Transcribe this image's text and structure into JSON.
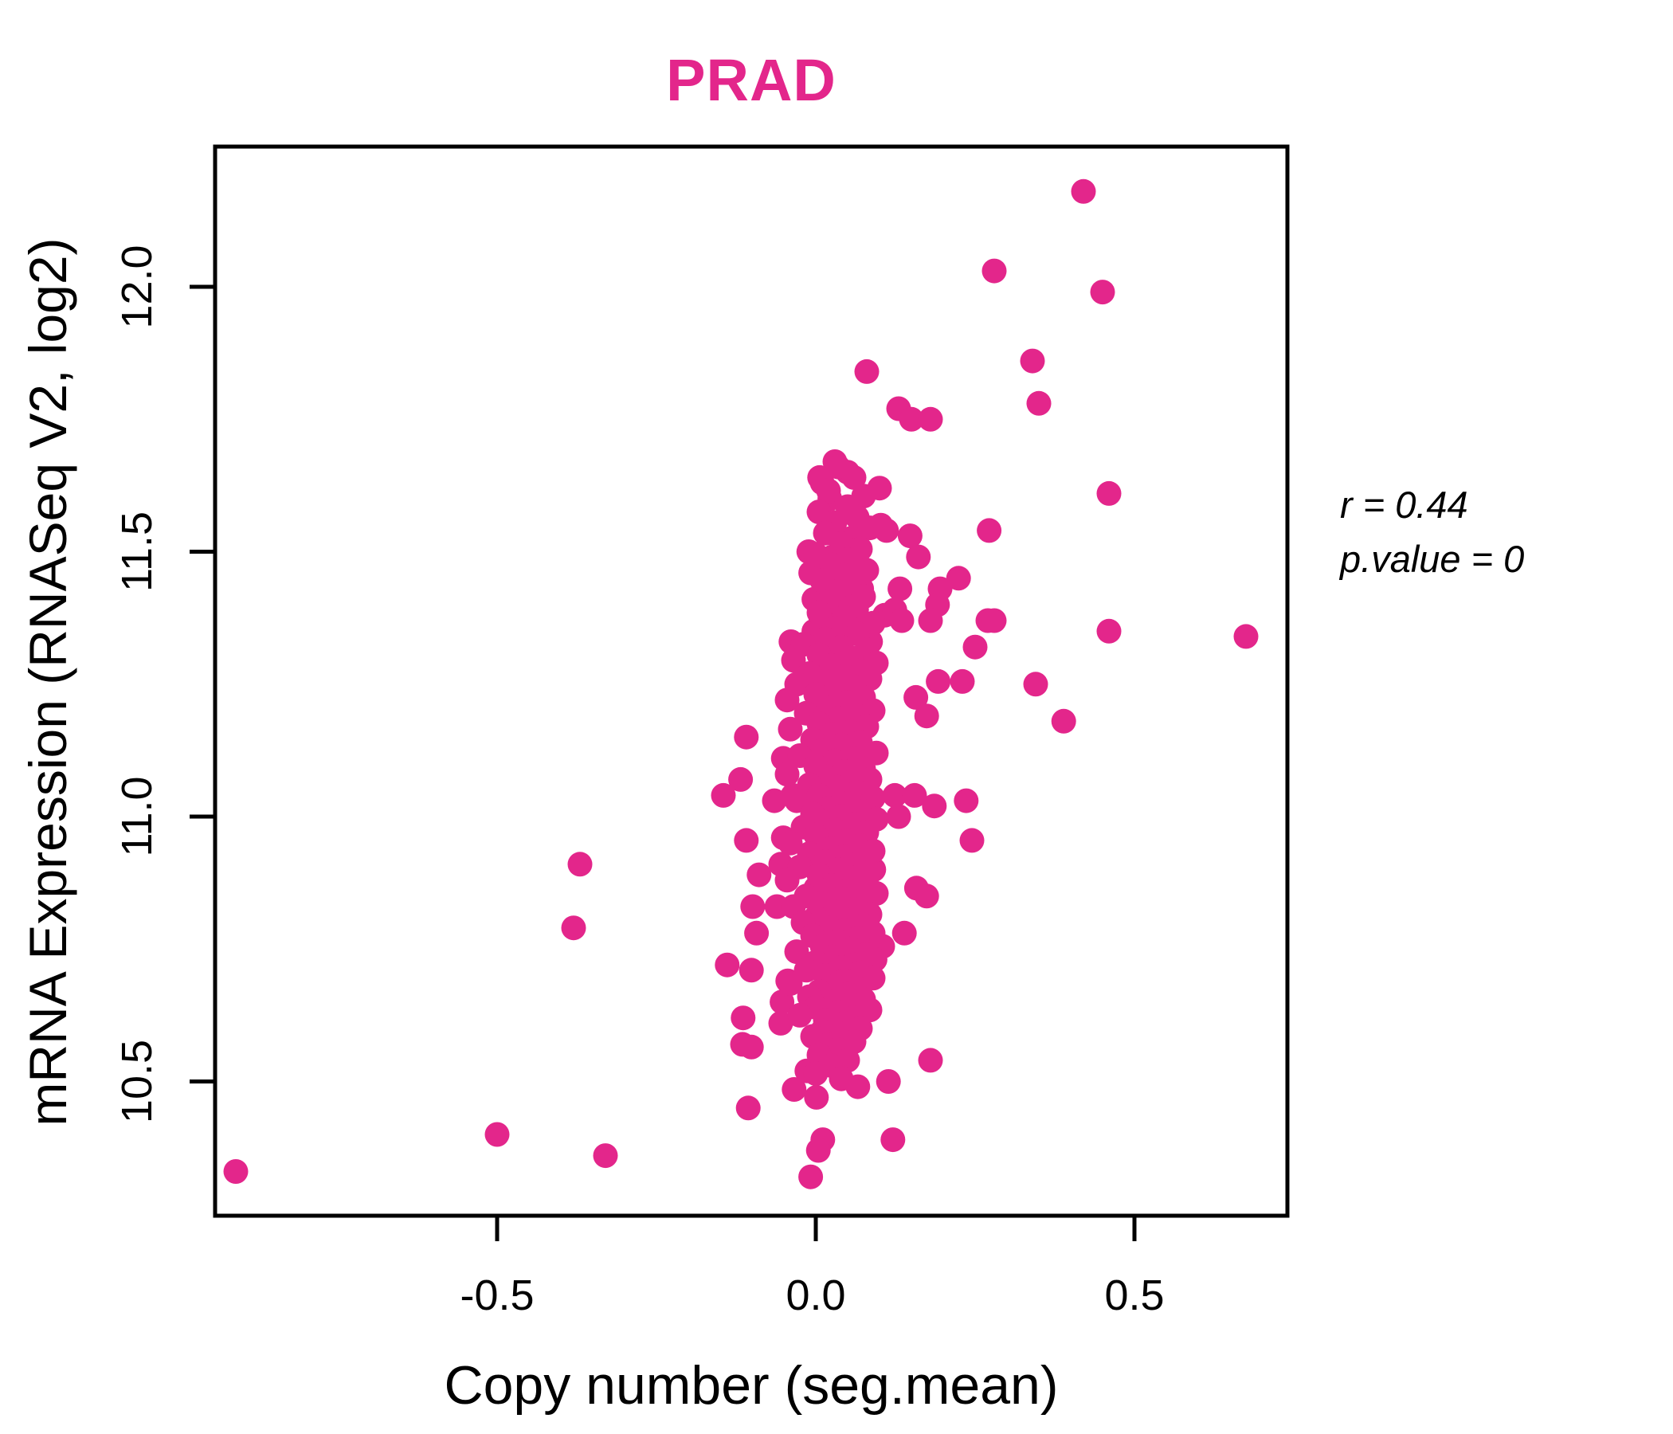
{
  "chart_data": {
    "type": "scatter",
    "title": "PRAD",
    "title_color": "#E3268B",
    "point_color": "#E3268B",
    "xlabel": "Copy number (seg.mean)",
    "ylabel": "mRNA Expression (RNASeq V2, log2)",
    "xlim": [
      -0.94,
      0.74
    ],
    "ylim": [
      10.25,
      12.27
    ],
    "grid": false,
    "legend": "none",
    "x_tick_values": [
      -0.5,
      0.0,
      0.5
    ],
    "x_tick_labels": [
      "-0.5",
      "0.0",
      "0.5"
    ],
    "y_tick_values": [
      10.5,
      11.0,
      11.5,
      12.0
    ],
    "y_tick_labels": [
      "10.5",
      "11.0",
      "11.5",
      "12.0"
    ],
    "correlation": {
      "r": 0.44,
      "p_value": 0,
      "r_label": "r = 0.44",
      "p_label": "p.value = 0"
    },
    "points": [
      [
        -0.91,
        10.33
      ],
      [
        -0.5,
        10.4
      ],
      [
        -0.33,
        10.36
      ],
      [
        -0.37,
        10.91
      ],
      [
        -0.38,
        10.79
      ],
      [
        0.42,
        12.18
      ],
      [
        0.28,
        12.03
      ],
      [
        0.45,
        11.99
      ],
      [
        0.34,
        11.86
      ],
      [
        0.35,
        11.78
      ],
      [
        0.46,
        11.61
      ],
      [
        0.675,
        11.34
      ],
      [
        0.46,
        11.35
      ],
      [
        0.08,
        11.84
      ],
      [
        0.13,
        11.77
      ],
      [
        0.15,
        11.75
      ],
      [
        0.18,
        11.75
      ],
      [
        0.03,
        11.67
      ],
      [
        0.05,
        11.65
      ],
      [
        0.01,
        11.63
      ],
      [
        0.1,
        11.62
      ],
      [
        0.006,
        11.64
      ],
      [
        0.022,
        11.6
      ],
      [
        0.102,
        11.55
      ],
      [
        0.111,
        11.54
      ],
      [
        0.148,
        11.53
      ],
      [
        0.161,
        11.49
      ],
      [
        0.272,
        11.54
      ],
      [
        -0.011,
        11.5
      ],
      [
        0.026,
        11.49
      ],
      [
        0.061,
        11.5
      ],
      [
        -0.008,
        11.46
      ],
      [
        0.024,
        11.47
      ],
      [
        0.026,
        11.45
      ],
      [
        0.045,
        11.44
      ],
      [
        0.064,
        11.44
      ],
      [
        0.072,
        11.43
      ],
      [
        0.132,
        11.43
      ],
      [
        0.224,
        11.45
      ],
      [
        0.195,
        11.43
      ],
      [
        0.191,
        11.4
      ],
      [
        0.18,
        11.37
      ],
      [
        0.108,
        11.38
      ],
      [
        0.124,
        11.39
      ],
      [
        0.135,
        11.37
      ],
      [
        -0.003,
        11.41
      ],
      [
        0.055,
        11.4
      ],
      [
        0.064,
        11.39
      ],
      [
        0.008,
        11.37
      ],
      [
        0.02,
        11.37
      ],
      [
        0.03,
        11.36
      ],
      [
        -0.003,
        11.35
      ],
      [
        0.036,
        11.35
      ],
      [
        -0.039,
        11.33
      ],
      [
        0.079,
        11.35
      ],
      [
        0.086,
        11.33
      ],
      [
        0.25,
        11.32
      ],
      [
        0.27,
        11.37
      ],
      [
        0.28,
        11.37
      ],
      [
        0.345,
        11.25
      ],
      [
        0.192,
        11.255
      ],
      [
        0.23,
        11.255
      ],
      [
        0.157,
        11.225
      ],
      [
        0.174,
        11.19
      ],
      [
        0.389,
        11.18
      ],
      [
        -0.109,
        11.15
      ],
      [
        -0.051,
        11.11
      ],
      [
        -0.118,
        11.07
      ],
      [
        -0.145,
        11.04
      ],
      [
        -0.065,
        11.03
      ],
      [
        -0.036,
        11.04
      ],
      [
        0.124,
        11.04
      ],
      [
        0.155,
        11.04
      ],
      [
        0.186,
        11.02
      ],
      [
        0.236,
        11.03
      ],
      [
        0.13,
        11.0
      ],
      [
        -0.109,
        10.955
      ],
      [
        -0.051,
        10.96
      ],
      [
        0.245,
        10.955
      ],
      [
        0.091,
        10.9
      ],
      [
        -0.055,
        10.91
      ],
      [
        -0.089,
        10.89
      ],
      [
        0.158,
        10.865
      ],
      [
        0.174,
        10.85
      ],
      [
        -0.099,
        10.83
      ],
      [
        -0.061,
        10.83
      ],
      [
        -0.093,
        10.78
      ],
      [
        0.139,
        10.78
      ],
      [
        0.105,
        10.755
      ],
      [
        0.093,
        10.73
      ],
      [
        -0.139,
        10.72
      ],
      [
        -0.101,
        10.71
      ],
      [
        -0.044,
        10.69
      ],
      [
        -0.053,
        10.65
      ],
      [
        -0.114,
        10.62
      ],
      [
        -0.055,
        10.61
      ],
      [
        -0.115,
        10.57
      ],
      [
        -0.101,
        10.565
      ],
      [
        0.18,
        10.54
      ],
      [
        -0.014,
        10.52
      ],
      [
        0.114,
        10.5
      ],
      [
        -0.034,
        10.485
      ],
      [
        0.066,
        10.49
      ],
      [
        -0.106,
        10.45
      ],
      [
        0.001,
        10.47
      ],
      [
        0.011,
        10.39
      ],
      [
        0.004,
        10.37
      ],
      [
        0.121,
        10.39
      ],
      [
        -0.008,
        10.32
      ],
      [
        0.035,
        11.66
      ],
      [
        0.06,
        11.64
      ],
      [
        0.02,
        11.615
      ],
      [
        0.075,
        11.605
      ],
      [
        0.05,
        11.585
      ],
      [
        0.005,
        11.575
      ],
      [
        0.065,
        11.565
      ],
      [
        0.03,
        11.555
      ],
      [
        0.085,
        11.545
      ],
      [
        0.015,
        11.535
      ],
      [
        0.055,
        11.525
      ],
      [
        0.04,
        11.515
      ],
      [
        0.07,
        11.505
      ],
      [
        0.0,
        11.495
      ],
      [
        0.05,
        11.485
      ],
      [
        0.025,
        11.475
      ],
      [
        0.08,
        11.465
      ],
      [
        0.045,
        11.455
      ],
      [
        0.01,
        11.445
      ],
      [
        0.06,
        11.435
      ],
      [
        0.035,
        11.425
      ],
      [
        0.075,
        11.415
      ],
      [
        0.02,
        11.405
      ],
      [
        0.055,
        11.395
      ],
      [
        0.005,
        11.385
      ],
      [
        0.045,
        11.375
      ],
      [
        0.09,
        11.365
      ],
      [
        0.03,
        11.355
      ],
      [
        0.065,
        11.345
      ],
      [
        0.015,
        11.335
      ],
      [
        -0.02,
        11.325
      ],
      [
        0.04,
        11.32
      ],
      [
        0.08,
        11.315
      ],
      [
        0.005,
        11.305
      ],
      [
        0.055,
        11.3
      ],
      [
        -0.035,
        11.295
      ],
      [
        0.095,
        11.29
      ],
      [
        0.025,
        11.285
      ],
      [
        0.065,
        11.275
      ],
      [
        -0.01,
        11.27
      ],
      [
        0.045,
        11.265
      ],
      [
        0.085,
        11.26
      ],
      [
        0.015,
        11.255
      ],
      [
        -0.03,
        11.25
      ],
      [
        0.06,
        11.245
      ],
      [
        0.03,
        11.235
      ],
      [
        0.0,
        11.23
      ],
      [
        0.075,
        11.225
      ],
      [
        -0.045,
        11.22
      ],
      [
        0.05,
        11.215
      ],
      [
        0.02,
        11.205
      ],
      [
        0.09,
        11.2
      ],
      [
        -0.015,
        11.195
      ],
      [
        0.065,
        11.19
      ],
      [
        0.035,
        11.185
      ],
      [
        0.005,
        11.175
      ],
      [
        0.08,
        11.17
      ],
      [
        -0.04,
        11.165
      ],
      [
        0.055,
        11.16
      ],
      [
        0.025,
        11.155
      ],
      [
        -0.005,
        11.145
      ],
      [
        0.07,
        11.14
      ],
      [
        0.04,
        11.135
      ],
      [
        0.01,
        11.125
      ],
      [
        0.095,
        11.12
      ],
      [
        -0.025,
        11.115
      ],
      [
        0.06,
        11.11
      ],
      [
        0.03,
        11.105
      ],
      [
        0.0,
        11.095
      ],
      [
        0.075,
        11.09
      ],
      [
        0.045,
        11.085
      ],
      [
        -0.045,
        11.08
      ],
      [
        0.015,
        11.075
      ],
      [
        0.085,
        11.07
      ],
      [
        0.055,
        11.065
      ],
      [
        -0.01,
        11.06
      ],
      [
        0.035,
        11.055
      ],
      [
        0.065,
        11.045
      ],
      [
        0.005,
        11.04
      ],
      [
        0.09,
        11.035
      ],
      [
        -0.03,
        11.03
      ],
      [
        0.05,
        11.025
      ],
      [
        0.02,
        11.015
      ],
      [
        0.075,
        11.01
      ],
      [
        -0.005,
        11.005
      ],
      [
        0.04,
        11.0
      ],
      [
        0.095,
        10.995
      ],
      [
        0.01,
        10.99
      ],
      [
        0.06,
        10.985
      ],
      [
        -0.02,
        10.98
      ],
      [
        0.03,
        10.975
      ],
      [
        0.08,
        10.97
      ],
      [
        0.0,
        10.965
      ],
      [
        0.05,
        10.955
      ],
      [
        -0.04,
        10.95
      ],
      [
        0.07,
        10.945
      ],
      [
        0.025,
        10.94
      ],
      [
        0.09,
        10.935
      ],
      [
        -0.01,
        10.93
      ],
      [
        0.045,
        10.925
      ],
      [
        0.015,
        10.915
      ],
      [
        0.065,
        10.91
      ],
      [
        -0.025,
        10.905
      ],
      [
        0.035,
        10.9
      ],
      [
        0.085,
        10.895
      ],
      [
        0.005,
        10.89
      ],
      [
        0.055,
        10.885
      ],
      [
        -0.045,
        10.88
      ],
      [
        0.075,
        10.875
      ],
      [
        0.025,
        10.87
      ],
      [
        0.0,
        10.865
      ],
      [
        0.05,
        10.86
      ],
      [
        0.095,
        10.855
      ],
      [
        -0.015,
        10.85
      ],
      [
        0.04,
        10.845
      ],
      [
        0.07,
        10.84
      ],
      [
        0.01,
        10.835
      ],
      [
        -0.035,
        10.83
      ],
      [
        0.06,
        10.825
      ],
      [
        0.03,
        10.82
      ],
      [
        0.085,
        10.815
      ],
      [
        0.0,
        10.81
      ],
      [
        0.05,
        10.805
      ],
      [
        -0.02,
        10.8
      ],
      [
        0.075,
        10.795
      ],
      [
        0.02,
        10.79
      ],
      [
        0.045,
        10.785
      ],
      [
        0.09,
        10.78
      ],
      [
        -0.005,
        10.775
      ],
      [
        0.065,
        10.77
      ],
      [
        0.035,
        10.765
      ],
      [
        0.01,
        10.755
      ],
      [
        0.055,
        10.75
      ],
      [
        -0.03,
        10.745
      ],
      [
        0.08,
        10.74
      ],
      [
        0.025,
        10.735
      ],
      [
        0.0,
        10.725
      ],
      [
        0.06,
        10.72
      ],
      [
        0.04,
        10.715
      ],
      [
        -0.015,
        10.71
      ],
      [
        0.07,
        10.705
      ],
      [
        0.015,
        10.7
      ],
      [
        0.09,
        10.695
      ],
      [
        0.045,
        10.69
      ],
      [
        -0.04,
        10.685
      ],
      [
        0.03,
        10.68
      ],
      [
        0.065,
        10.675
      ],
      [
        0.005,
        10.67
      ],
      [
        0.05,
        10.665
      ],
      [
        -0.01,
        10.66
      ],
      [
        0.075,
        10.655
      ],
      [
        0.025,
        10.65
      ],
      [
        0.055,
        10.645
      ],
      [
        0.0,
        10.64
      ],
      [
        0.085,
        10.635
      ],
      [
        0.035,
        10.63
      ],
      [
        -0.025,
        10.625
      ],
      [
        0.06,
        10.62
      ],
      [
        0.015,
        10.615
      ],
      [
        0.045,
        10.61
      ],
      [
        0.07,
        10.6
      ],
      [
        0.01,
        10.595
      ],
      [
        0.04,
        10.59
      ],
      [
        -0.005,
        10.585
      ],
      [
        0.06,
        10.575
      ],
      [
        0.02,
        10.57
      ],
      [
        0.035,
        10.56
      ],
      [
        0.005,
        10.55
      ],
      [
        0.05,
        10.54
      ],
      [
        0.025,
        10.53
      ],
      [
        0.0,
        10.515
      ],
      [
        0.04,
        10.505
      ]
    ]
  }
}
